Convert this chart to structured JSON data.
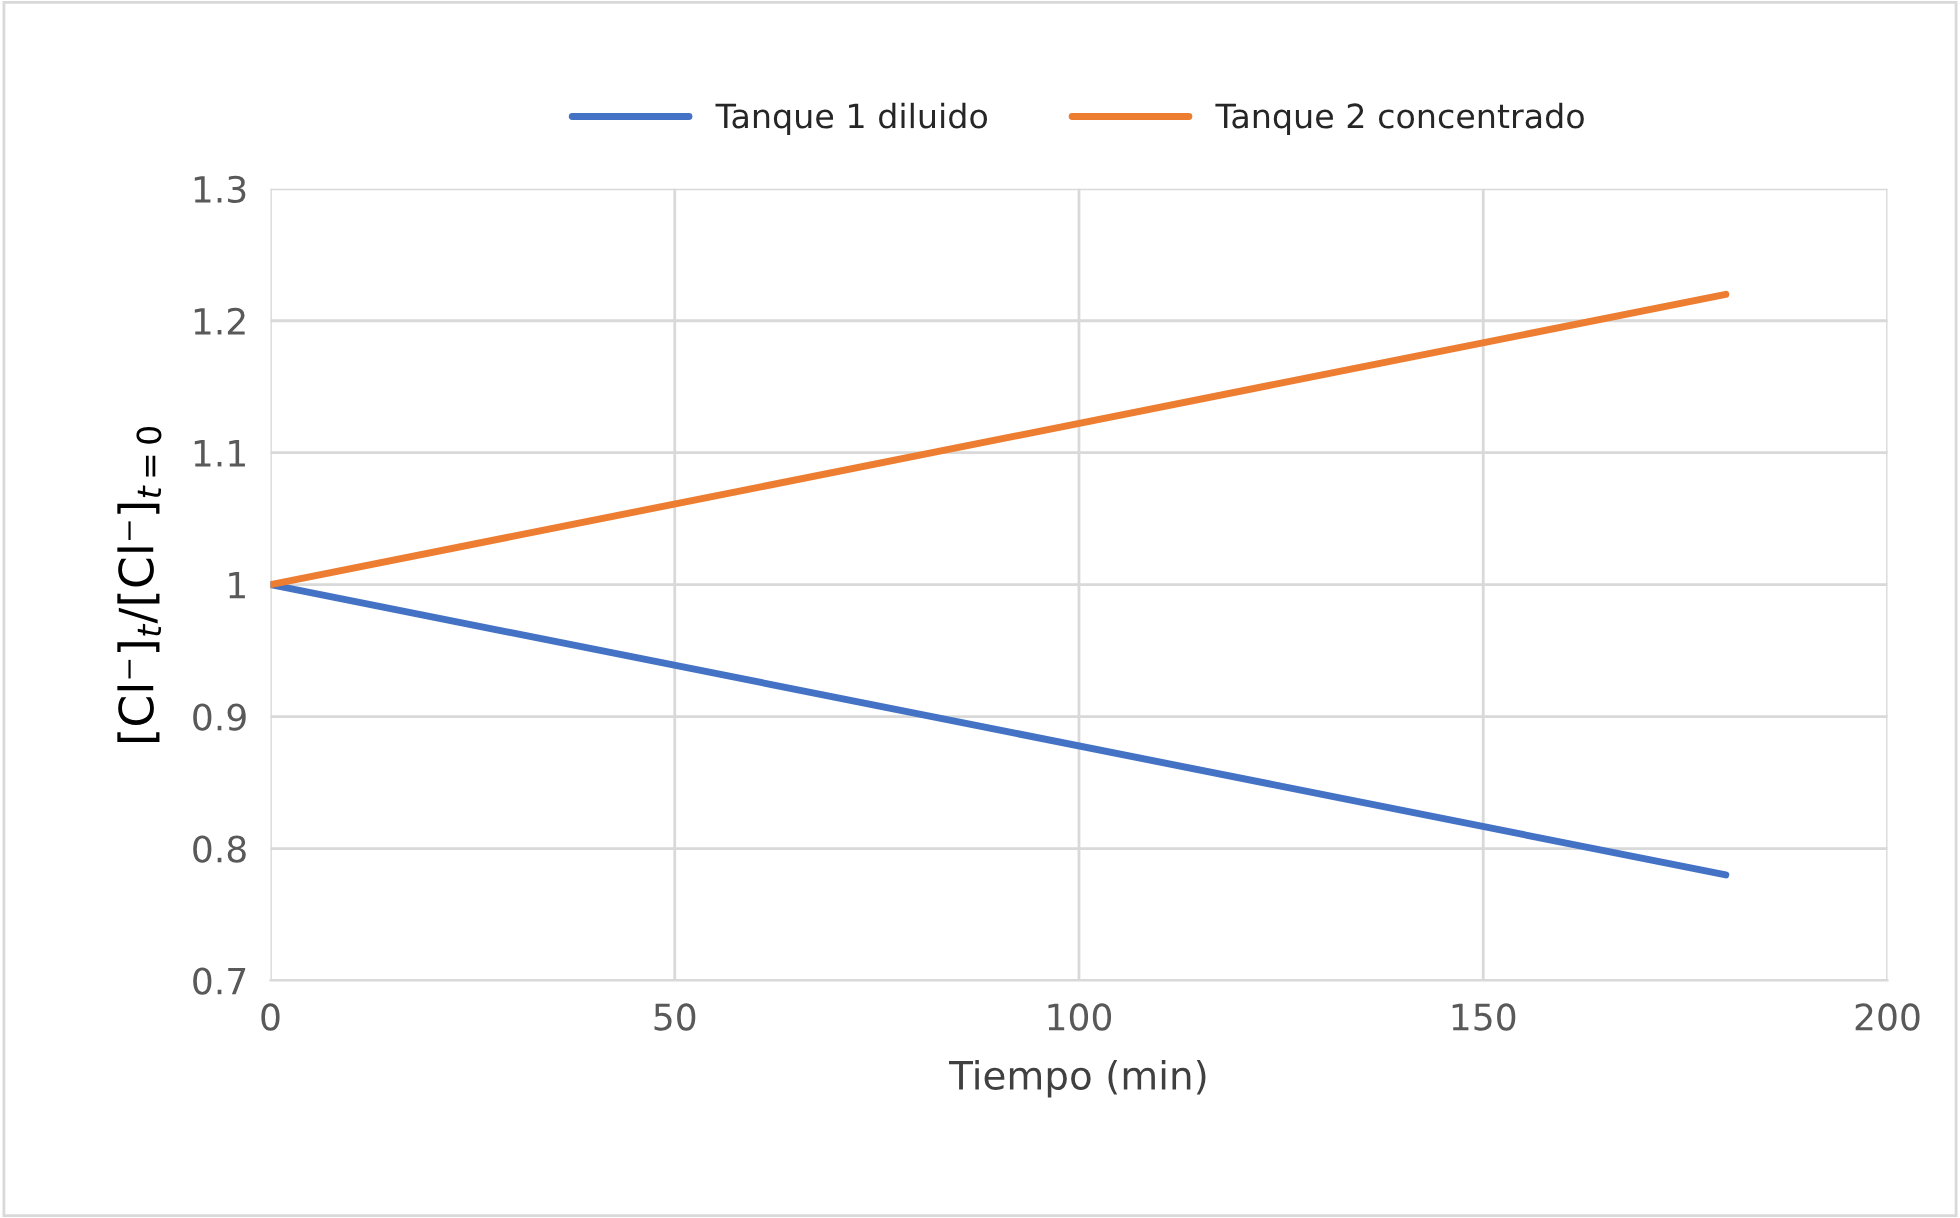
{
  "chart_data": {
    "type": "line",
    "xlabel": "Tiempo (min)",
    "ylabel": "[Cl⁻]$_{t}$/[Cl⁻]$_{t=0}$",
    "x": [
      0,
      180
    ],
    "series": [
      {
        "name": "Tanque 1 diluido",
        "color": "#4472c4",
        "values": [
          1,
          0.78
        ]
      },
      {
        "name": "Tanque 2 concentrado",
        "color": "#ed7d31",
        "values": [
          1,
          1.22
        ]
      }
    ],
    "xlim": [
      0,
      200
    ],
    "xticks": [
      0,
      50,
      100,
      150,
      200
    ],
    "ylim": [
      0.7,
      1.3
    ],
    "yticks": [
      0.7,
      0.8,
      0.9,
      1,
      1.1,
      1.2,
      1.3
    ],
    "grid": true,
    "legend": "top",
    "marker": "none",
    "line_style": "solid"
  }
}
